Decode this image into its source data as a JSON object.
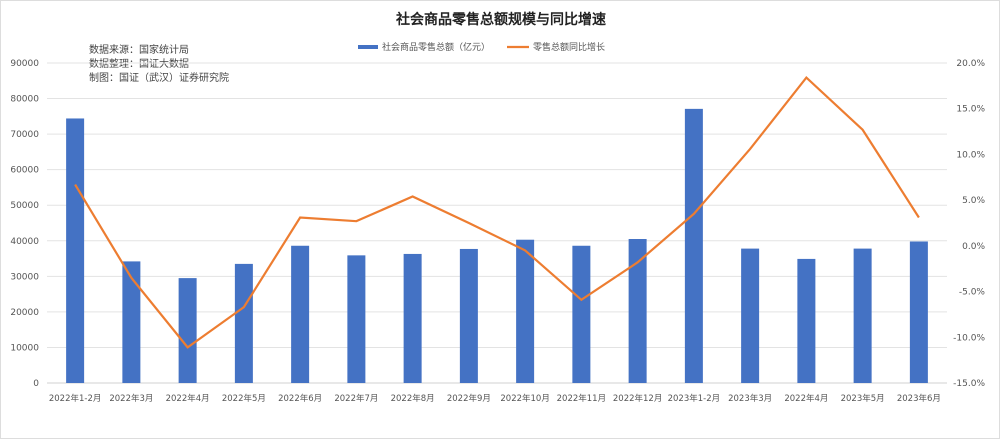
{
  "chart_data": {
    "type": "bar+line",
    "title": "社会商品零售总额规模与同比增速",
    "categories": [
      "2022年1-2月",
      "2022年3月",
      "2022年4月",
      "2022年5月",
      "2022年6月",
      "2022年7月",
      "2022年8月",
      "2022年9月",
      "2022年10月",
      "2022年11月",
      "2022年12月",
      "2023年1-2月",
      "2023年3月",
      "2022年4月",
      "2023年5月",
      "2023年6月"
    ],
    "series": [
      {
        "name": "社会商品零售总额（亿元）",
        "type": "bar",
        "axis": "left",
        "color": "#4472C4",
        "values": [
          74400,
          34200,
          29500,
          33500,
          38600,
          35900,
          36300,
          37700,
          40300,
          38600,
          40500,
          77100,
          37800,
          34900,
          37800,
          39800
        ]
      },
      {
        "name": "零售总额同比增长",
        "type": "line",
        "axis": "right",
        "color": "#ED7D31",
        "values": [
          6.7,
          -3.5,
          -11.1,
          -6.7,
          3.1,
          2.7,
          5.4,
          2.5,
          -0.5,
          -5.9,
          -1.8,
          3.5,
          10.6,
          18.4,
          12.7,
          3.1
        ]
      }
    ],
    "left_axis": {
      "range": [
        0,
        90000
      ],
      "ticks": [
        "0",
        "10000",
        "20000",
        "30000",
        "40000",
        "50000",
        "60000",
        "70000",
        "80000",
        "90000"
      ]
    },
    "right_axis": {
      "range": [
        -15,
        20
      ],
      "ticks": [
        "-15.0%",
        "-10.0%",
        "-5.0%",
        "0.0%",
        "5.0%",
        "10.0%",
        "15.0%",
        "20.0%"
      ]
    },
    "legend_position": "top-center",
    "grid": true
  },
  "source_notes": [
    "数据来源：国家统计局",
    "数据整理：国证大数据",
    "制图：国证（武汉）证券研究院"
  ]
}
